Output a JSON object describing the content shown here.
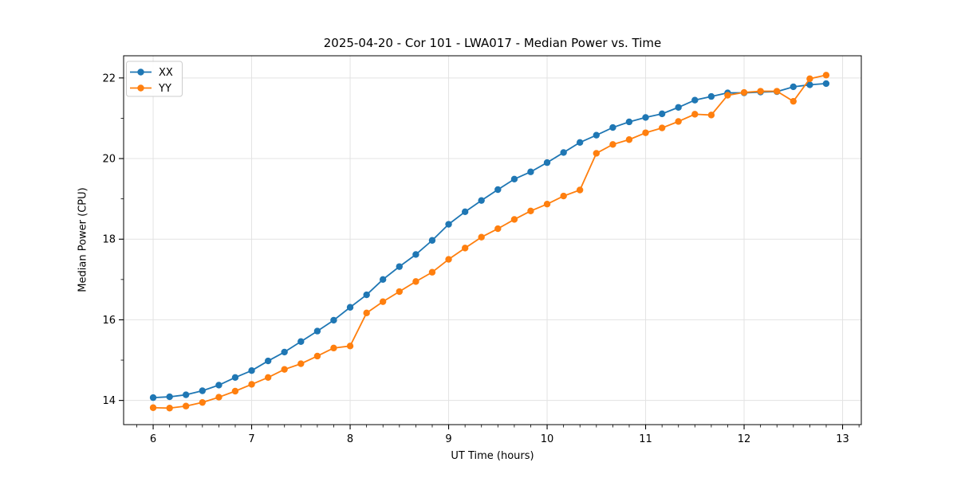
{
  "figure": {
    "background": "#ffffff"
  },
  "chart_data": {
    "type": "line",
    "title": "2025-04-20 - Cor 101 - LWA017 - Median Power vs. Time",
    "xlabel": "UT Time (hours)",
    "ylabel": "Median Power (CPU)",
    "xlim": [
      5.7,
      13.19
    ],
    "ylim": [
      13.4,
      22.55
    ],
    "xticks": [
      6,
      7,
      8,
      9,
      10,
      11,
      12,
      13
    ],
    "yticks": [
      14,
      16,
      18,
      20,
      22
    ],
    "minor_yticks": [
      15,
      17,
      19,
      21
    ],
    "minor_xtick_step": 0.16667,
    "grid": true,
    "grid_color": "#e3e3e3",
    "spine_color": "#000000",
    "legend_position": "upper-left",
    "x": [
      6.0,
      6.167,
      6.333,
      6.5,
      6.667,
      6.833,
      7.0,
      7.167,
      7.333,
      7.5,
      7.667,
      7.833,
      8.0,
      8.167,
      8.333,
      8.5,
      8.667,
      8.833,
      9.0,
      9.167,
      9.333,
      9.5,
      9.667,
      9.833,
      10.0,
      10.167,
      10.333,
      10.5,
      10.667,
      10.833,
      11.0,
      11.167,
      11.333,
      11.5,
      11.667,
      11.833,
      12.0,
      12.167,
      12.333,
      12.5,
      12.667,
      12.833
    ],
    "series": [
      {
        "name": "XX",
        "color": "#1f77b4",
        "values": [
          14.07,
          14.09,
          14.14,
          14.24,
          14.38,
          14.57,
          14.74,
          14.98,
          15.2,
          15.46,
          15.72,
          15.99,
          16.31,
          16.62,
          17.0,
          17.32,
          17.62,
          17.97,
          18.37,
          18.68,
          18.96,
          19.23,
          19.49,
          19.67,
          19.9,
          20.15,
          20.4,
          20.58,
          20.77,
          20.91,
          21.02,
          21.11,
          21.27,
          21.45,
          21.54,
          21.63,
          21.63,
          21.65,
          21.66,
          21.78,
          21.83,
          21.86
        ]
      },
      {
        "name": "YY",
        "color": "#ff7f0e",
        "values": [
          13.82,
          13.81,
          13.86,
          13.95,
          14.08,
          14.23,
          14.4,
          14.57,
          14.77,
          14.91,
          15.1,
          15.3,
          15.35,
          16.17,
          16.45,
          16.7,
          16.95,
          17.18,
          17.5,
          17.78,
          18.05,
          18.26,
          18.49,
          18.7,
          18.87,
          19.07,
          19.22,
          20.13,
          20.35,
          20.47,
          20.64,
          20.76,
          20.92,
          21.1,
          21.08,
          21.57,
          21.64,
          21.67,
          21.67,
          21.42,
          21.98,
          22.07
        ]
      }
    ]
  }
}
